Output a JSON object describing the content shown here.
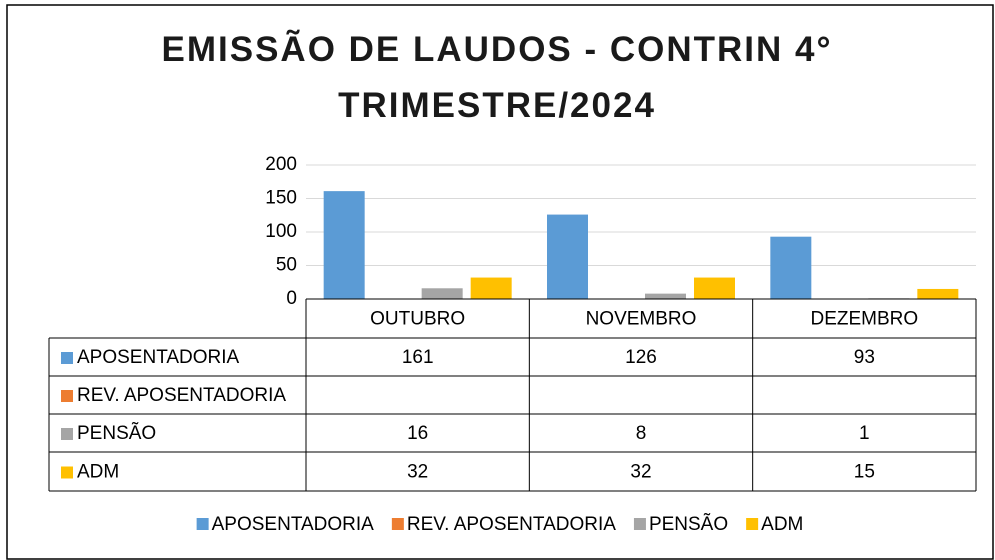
{
  "chart_data": {
    "type": "bar",
    "title": "EMISSÃO DE LAUDOS - CONTRIN 4° TRIMESTRE/2024",
    "categories": [
      "OUTUBRO",
      "NOVEMBRO",
      "DEZEMBRO"
    ],
    "series": [
      {
        "name": "APOSENTADORIA",
        "color": "#5b9bd5",
        "values": [
          161,
          126,
          93
        ]
      },
      {
        "name": "REV. APOSENTADORIA",
        "color": "#ed7d31",
        "values": [
          null,
          null,
          null
        ]
      },
      {
        "name": "PENSÃO",
        "color": "#a5a5a5",
        "values": [
          16,
          8,
          1
        ]
      },
      {
        "name": "ADM",
        "color": "#ffc000",
        "values": [
          32,
          32,
          15
        ]
      }
    ],
    "ylim": [
      0,
      200
    ],
    "yticks": [
      0,
      50,
      100,
      150,
      200
    ],
    "grid": true,
    "legend": "bottom"
  }
}
